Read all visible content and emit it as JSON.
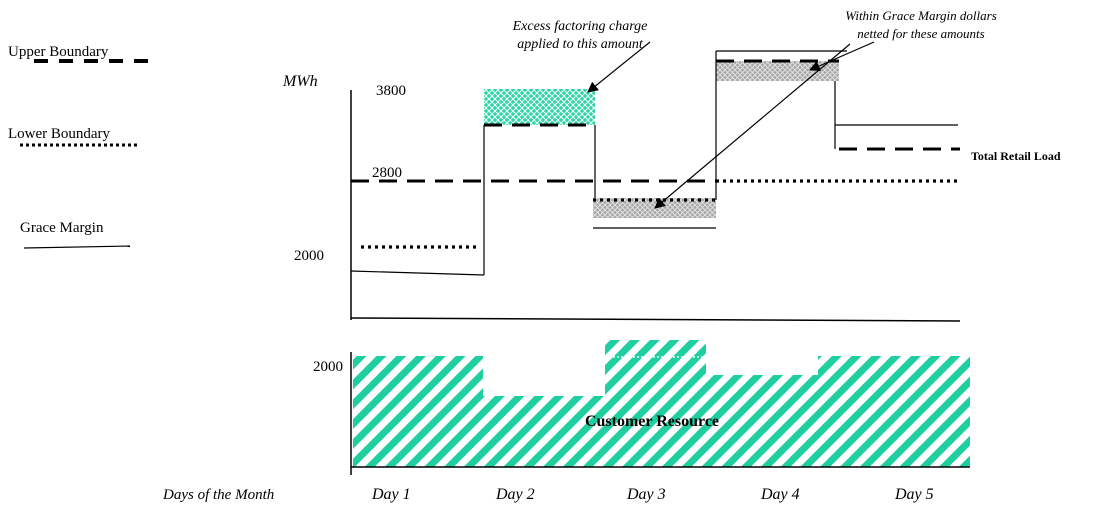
{
  "legend": {
    "upper_boundary": "Upper Boundary",
    "lower_boundary": "Lower Boundary",
    "grace_margin": "Grace Margin"
  },
  "axis": {
    "y_unit": "MWh",
    "tick_3800": "3800",
    "tick_2800": "2800",
    "tick_2000": "2000",
    "resource_tick_2000": "2000",
    "x_title": "Days of the Month"
  },
  "days": [
    "Day 1",
    "Day 2",
    "Day 3",
    "Day 4",
    "Day 5"
  ],
  "annotations": {
    "excess_line1": "Excess factoring charge",
    "excess_line2": "applied to this amount",
    "within_line1": "Within Grace Margin dollars",
    "within_line2": "netted for these amounts"
  },
  "labels": {
    "total_retail_load": "Total Retail Load",
    "customer_resource": "Customer Resource"
  },
  "colors": {
    "excess_fill": "#1fcfa0",
    "within_fill": "#9a9a9a",
    "resource_hatch": "#1fcfa0",
    "line": "#000000"
  }
}
